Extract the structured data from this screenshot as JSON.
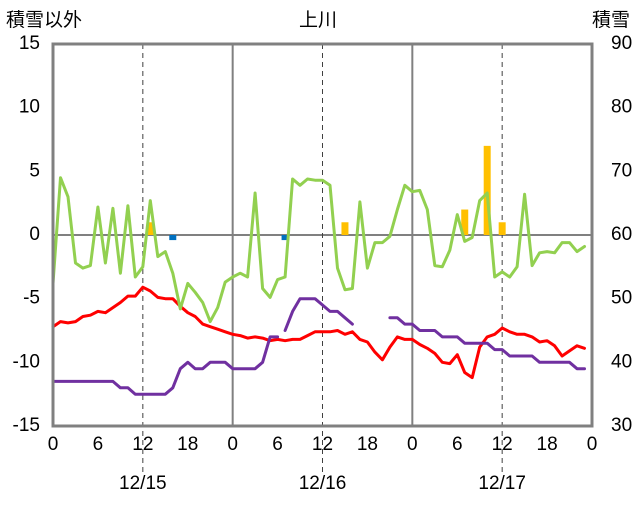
{
  "chart_data": {
    "type": "line",
    "title": "上川",
    "left_axis_label": "積雪以外",
    "right_axis_label": "積雪",
    "left_ylim": [
      -15,
      15
    ],
    "right_ylim": [
      30,
      90
    ],
    "left_ticks": [
      15,
      10,
      5,
      0,
      -5,
      -10,
      -15
    ],
    "right_ticks": [
      90,
      80,
      70,
      60,
      50,
      40,
      30
    ],
    "xlim": [
      0,
      72
    ],
    "x_ticks": [
      {
        "x": 0,
        "label": "0"
      },
      {
        "x": 6,
        "label": "6"
      },
      {
        "x": 12,
        "label": "12"
      },
      {
        "x": 18,
        "label": "18"
      },
      {
        "x": 24,
        "label": "0"
      },
      {
        "x": 30,
        "label": "6"
      },
      {
        "x": 36,
        "label": "12"
      },
      {
        "x": 42,
        "label": "18"
      },
      {
        "x": 48,
        "label": "0"
      },
      {
        "x": 54,
        "label": "6"
      },
      {
        "x": 60,
        "label": "12"
      },
      {
        "x": 66,
        "label": "18"
      },
      {
        "x": 72,
        "label": "0"
      }
    ],
    "day_labels": [
      {
        "x": 12,
        "label": "12/15"
      },
      {
        "x": 36,
        "label": "12/16"
      },
      {
        "x": 60,
        "label": "12/17"
      }
    ],
    "day_dividers": [
      24,
      48
    ],
    "noon_lines": [
      12,
      36,
      60
    ],
    "grid": false,
    "colors": {
      "temperature": "#ff0000",
      "wind": "#92d050",
      "snow_depth": "#7030a0",
      "precipitation": "#ffc000",
      "snowfall": "#0070c0",
      "axis": "#808080",
      "dashed": "#404040"
    },
    "series": [
      {
        "key": "temperature",
        "axis": "left",
        "x": [
          0,
          1,
          2,
          3,
          4,
          5,
          6,
          7,
          8,
          9,
          10,
          11,
          12,
          13,
          14,
          15,
          16,
          17,
          18,
          19,
          20,
          21,
          22,
          23,
          24,
          25,
          26,
          27,
          28,
          29,
          30,
          31,
          32,
          33,
          34,
          35,
          36,
          37,
          38,
          39,
          40,
          41,
          42,
          43,
          44,
          45,
          46,
          47,
          48,
          49,
          50,
          51,
          52,
          53,
          54,
          55,
          56,
          57,
          58,
          59,
          60,
          61,
          62,
          63,
          64,
          65,
          66,
          67,
          68,
          69,
          70,
          71
        ],
        "values": [
          -7.2,
          -6.8,
          -6.9,
          -6.8,
          -6.4,
          -6.3,
          -6.0,
          -6.1,
          -5.7,
          -5.3,
          -4.8,
          -4.8,
          -4.1,
          -4.4,
          -4.9,
          -5.0,
          -5.0,
          -5.6,
          -6.1,
          -6.4,
          -7.0,
          -7.2,
          -7.4,
          -7.6,
          -7.8,
          -7.9,
          -8.1,
          -8.0,
          -8.1,
          -8.3,
          -8.2,
          -8.3,
          -8.2,
          -8.2,
          -7.9,
          -7.6,
          -7.6,
          -7.6,
          -7.5,
          -7.8,
          -7.6,
          -8.2,
          -8.4,
          -9.2,
          -9.8,
          -8.8,
          -8.0,
          -8.2,
          -8.2,
          -8.6,
          -8.9,
          -9.3,
          -10.0,
          -10.1,
          -9.4,
          -10.8,
          -11.2,
          -8.8,
          -8.0,
          -7.8,
          -7.3,
          -7.6,
          -7.8,
          -7.8,
          -8.0,
          -8.4,
          -8.3,
          -8.7,
          -9.5,
          -9.1,
          -8.7,
          -8.9
        ]
      },
      {
        "key": "wind",
        "axis": "left",
        "x": [
          0,
          1,
          2,
          3,
          4,
          5,
          6,
          7,
          8,
          9,
          10,
          11,
          12,
          13,
          14,
          15,
          16,
          17,
          18,
          19,
          20,
          21,
          22,
          23,
          24,
          25,
          26,
          27,
          28,
          29,
          30,
          31,
          32,
          33,
          34,
          35,
          36,
          37,
          38,
          39,
          40,
          41,
          42,
          43,
          44,
          45,
          46,
          47,
          48,
          49,
          50,
          51,
          52,
          53,
          54,
          55,
          56,
          57,
          58,
          59,
          60,
          61,
          62,
          63,
          64,
          65,
          66,
          67,
          68,
          69,
          70,
          71
        ],
        "values": [
          -3.8,
          4.5,
          3.0,
          -2.2,
          -2.6,
          -2.4,
          2.2,
          -2.2,
          2.1,
          -3.0,
          2.3,
          -3.3,
          -2.5,
          2.7,
          -1.7,
          -1.3,
          -3.0,
          -5.8,
          -3.8,
          -4.5,
          -5.3,
          -6.8,
          -5.7,
          -3.7,
          -3.3,
          -3.0,
          -3.3,
          3.3,
          -4.2,
          -4.9,
          -3.5,
          -3.3,
          4.4,
          3.9,
          4.4,
          4.3,
          4.3,
          3.9,
          -2.6,
          -4.3,
          -4.2,
          2.6,
          -2.6,
          -0.6,
          -0.6,
          -0.1,
          2.0,
          3.9,
          3.4,
          3.5,
          2.0,
          -2.4,
          -2.5,
          -1.2,
          1.6,
          -0.5,
          -0.2,
          2.7,
          3.3,
          -3.3,
          -2.9,
          -3.3,
          -2.5,
          3.2,
          -2.4,
          -1.4,
          -1.3,
          -1.4,
          -0.6,
          -0.6,
          -1.3,
          -0.9
        ]
      },
      {
        "key": "snow_depth",
        "axis": "right",
        "segments": [
          {
            "x": [
              0,
              8,
              9,
              10,
              11,
              12,
              13,
              14,
              15,
              16,
              17,
              18,
              19,
              20,
              21,
              22,
              23,
              24,
              25,
              26,
              27,
              28,
              29,
              30
            ],
            "values": [
              37,
              37,
              36,
              36,
              35,
              35,
              35,
              35,
              35,
              36,
              39,
              40,
              39,
              39,
              40,
              40,
              40,
              39,
              39,
              39,
              39,
              40,
              44,
              44
            ]
          },
          {
            "x": [
              31,
              32,
              33,
              34,
              35,
              36,
              37,
              38,
              39,
              40
            ],
            "values": [
              45,
              48,
              50,
              50,
              50,
              49,
              48,
              48,
              47,
              46
            ]
          },
          {
            "x": [
              45,
              46,
              47,
              48,
              49,
              50,
              51,
              52,
              53,
              54,
              55,
              56,
              57,
              58,
              59,
              60,
              61,
              62,
              63,
              64,
              65,
              66,
              67,
              68,
              69,
              70,
              71
            ],
            "values": [
              47,
              47,
              46,
              46,
              45,
              45,
              45,
              44,
              44,
              44,
              43,
              43,
              43,
              43,
              42,
              42,
              41,
              41,
              41,
              41,
              40,
              40,
              40,
              40,
              40,
              39,
              39
            ]
          }
        ]
      }
    ],
    "bars": [
      {
        "key": "precipitation",
        "axis": "left",
        "x": [
          13,
          39,
          55,
          58,
          60
        ],
        "values": [
          1.0,
          1.0,
          2.0,
          7.0,
          1.0
        ]
      },
      {
        "key": "snowfall",
        "axis": "left",
        "x": [
          16,
          31
        ],
        "values": [
          -0.4,
          -0.4
        ]
      }
    ]
  }
}
